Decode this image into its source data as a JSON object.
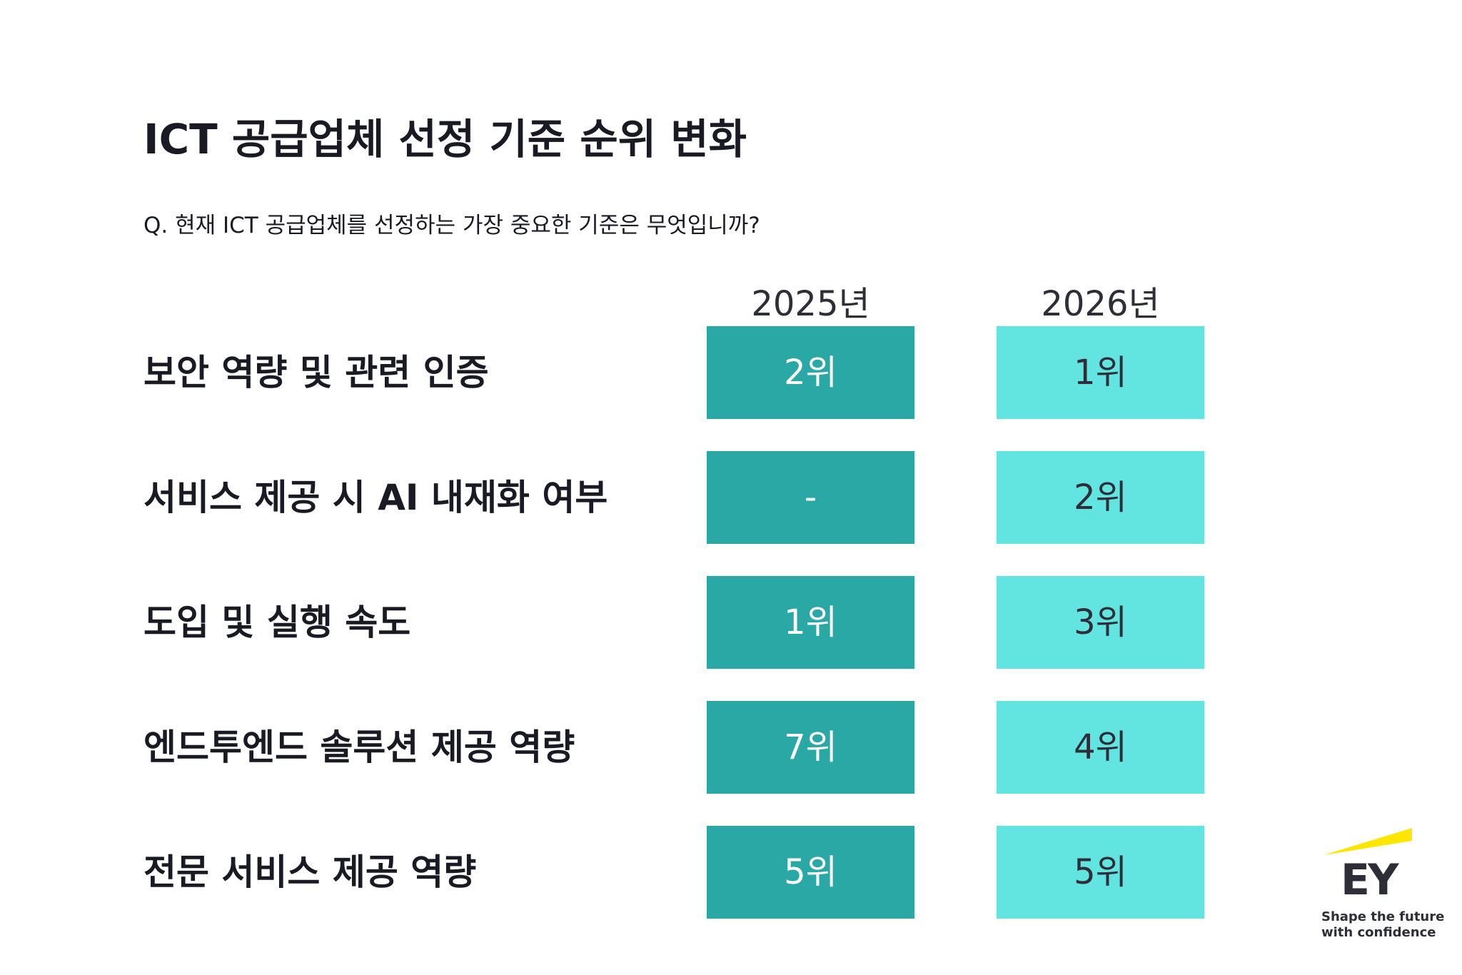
{
  "header": {
    "title": "ICT 공급업체 선정 기준 순위 변화",
    "question": "Q. 현재 ICT 공급업체를 선정하는 가장 중요한 기준은 무엇입니까?"
  },
  "table": {
    "columns": [
      "2025년",
      "2026년"
    ],
    "rows": [
      {
        "label": "보안 역량 및 관련 인증",
        "cells": [
          "2위",
          "1위"
        ]
      },
      {
        "label": "서비스 제공 시 AI 내재화 여부",
        "cells": [
          "-",
          "2위"
        ]
      },
      {
        "label": "도입 및 실행 속도",
        "cells": [
          "1위",
          "3위"
        ]
      },
      {
        "label": "엔드투엔드 솔루션 제공 역량",
        "cells": [
          "7위",
          "4위"
        ]
      },
      {
        "label": "전문 서비스 제공 역량",
        "cells": [
          "5위",
          "5위"
        ]
      }
    ]
  },
  "footer": {
    "logo": "EY",
    "tagline": [
      "Shape the future",
      "with confidence"
    ]
  }
}
